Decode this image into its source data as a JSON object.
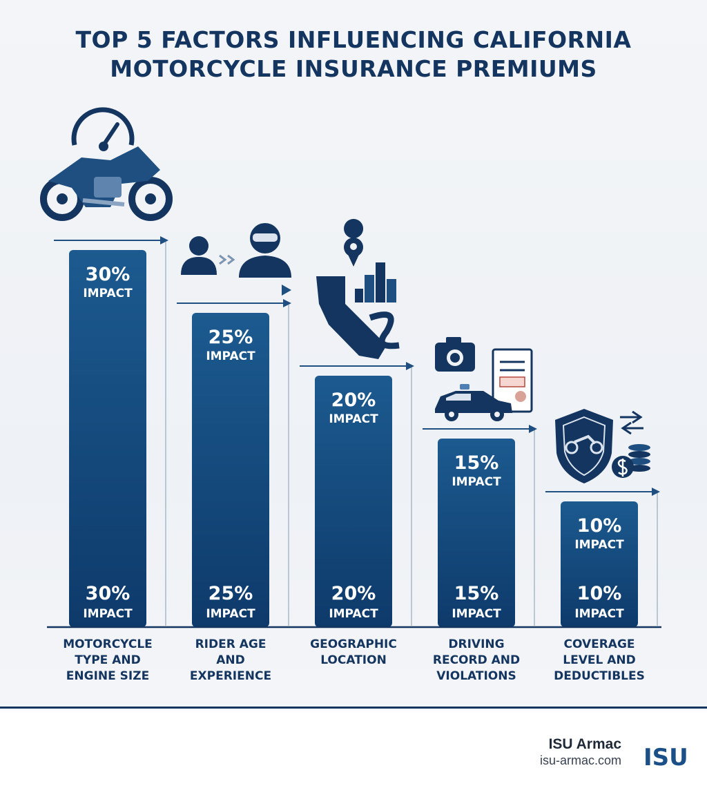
{
  "chart_data": {
    "type": "bar",
    "title_lines": [
      "TOP 5 FACTORS INFLUENCING CALIFORNIA",
      "MOTORCYCLE INSURANCE PREMIUMS"
    ],
    "categories": [
      [
        "MOTORCYCLE",
        "TYPE AND",
        "ENGINE SIZE"
      ],
      [
        "RIDER AGE",
        "AND",
        "EXPERIENCE"
      ],
      [
        "GEOGRAPHIC",
        "LOCATION"
      ],
      [
        "DRIVING",
        "RECORD AND",
        "VIOLATIONS"
      ],
      [
        "COVERAGE",
        "LEVEL AND",
        "DEDUCTIBLES"
      ]
    ],
    "values": [
      30,
      25,
      20,
      15,
      10
    ],
    "value_labels": [
      "30%",
      "25%",
      "20%",
      "15%",
      "10%"
    ],
    "impact_word": "IMPACT",
    "icons": [
      "motorcycle-speedometer-icon",
      "rider-growth-icon",
      "california-city-map-icon",
      "camera-police-ticket-icon",
      "shield-coins-icon"
    ],
    "ylim": [
      0,
      30
    ],
    "grid": false,
    "legend": "none",
    "colors": {
      "bar_top": "#1c5a8f",
      "bar_bottom": "#0e3a6b",
      "text": "#13355f",
      "arrow": "#1e4f80"
    }
  },
  "footer": {
    "brand_name": "ISU Armac",
    "brand_url": "isu-armac.com",
    "logo_text": "ISU"
  }
}
